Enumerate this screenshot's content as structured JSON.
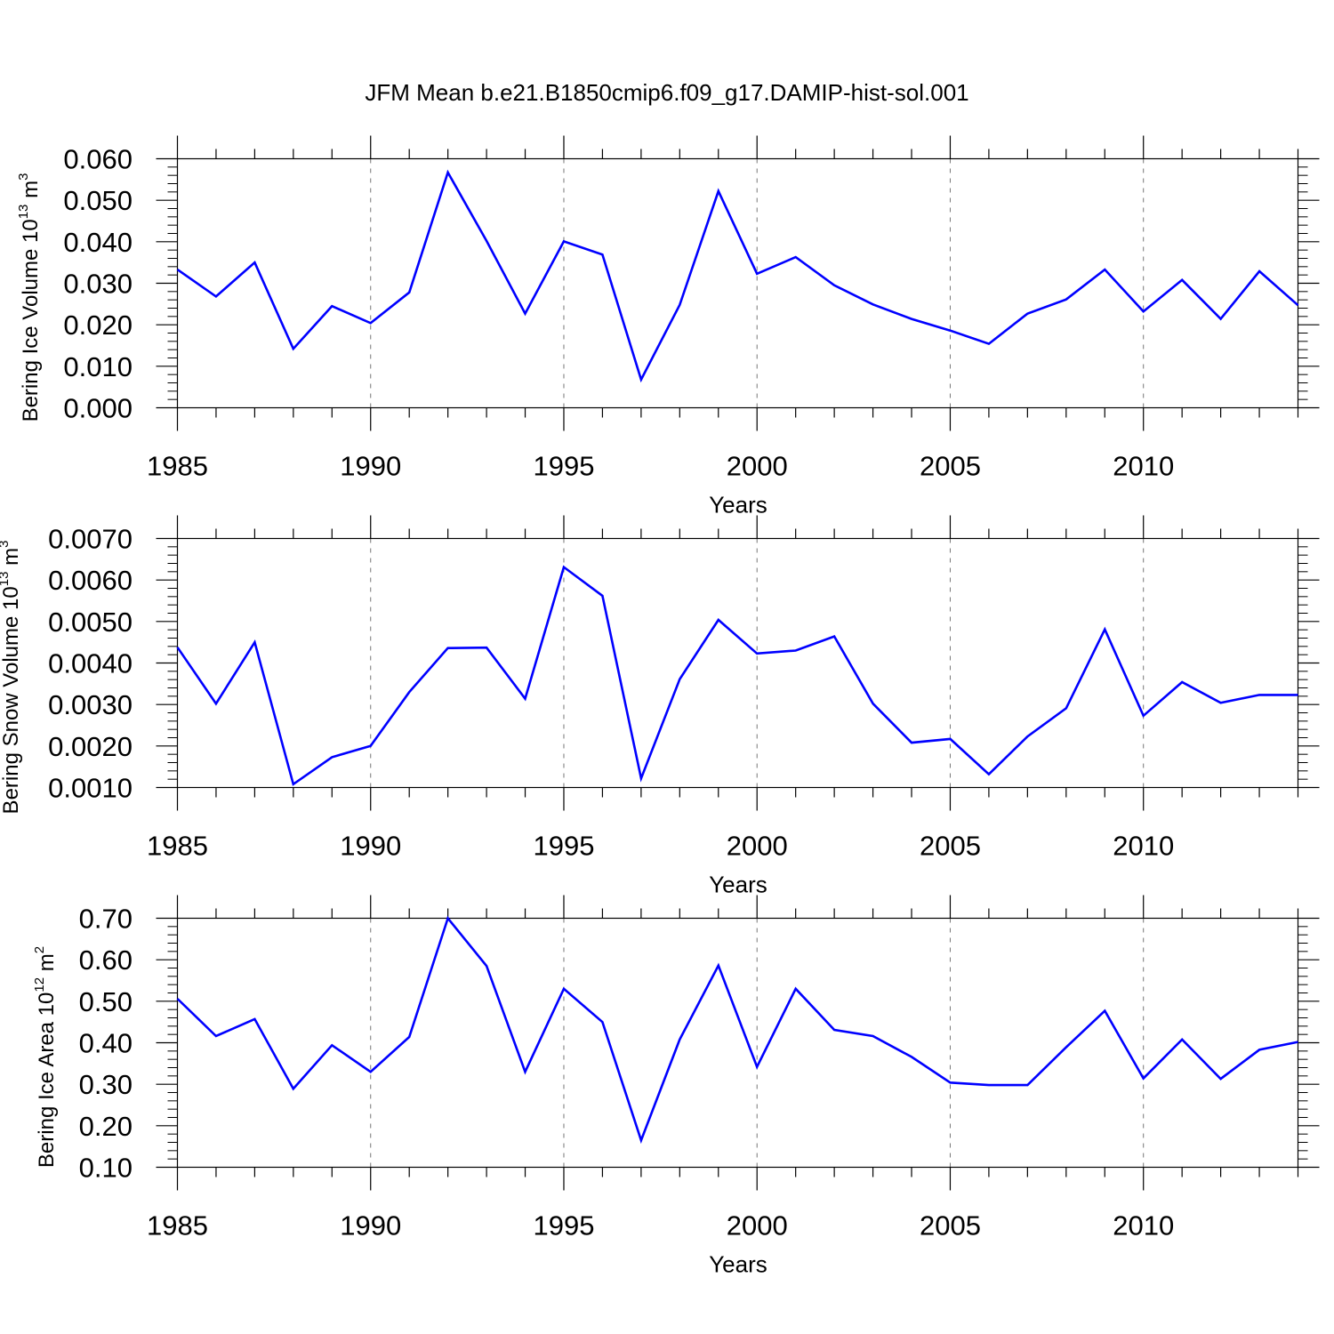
{
  "figure": {
    "title": "JFM Mean b.e21.B1850cmip6.f09_g17.DAMIP-hist-sol.001"
  },
  "colors": {
    "series": "#0000ff",
    "axis": "#000000",
    "grid": "#777777"
  },
  "chart_data": [
    {
      "type": "line",
      "xlabel": "Years",
      "ylabel": {
        "main": "Bering Ice Volume 10",
        "sup": "13",
        "unit": "m",
        "unit_sup": "3"
      },
      "xlim": [
        1985,
        2014
      ],
      "ylim": [
        0.0,
        0.06
      ],
      "x_ticks": [
        1985,
        1990,
        1995,
        2000,
        2005,
        2010
      ],
      "x_tick_labels": [
        "1985",
        "1990",
        "1995",
        "2000",
        "2005",
        "2010"
      ],
      "y_ticks": [
        0.0,
        0.01,
        0.02,
        0.03,
        0.04,
        0.05,
        0.06
      ],
      "y_tick_labels": [
        "0.000",
        "0.010",
        "0.020",
        "0.030",
        "0.040",
        "0.050",
        "0.060"
      ],
      "y_minor_step": 0.002,
      "x_grid": "dashed, at major ticks",
      "x": [
        1985,
        1986,
        1987,
        1988,
        1989,
        1990,
        1991,
        1992,
        1993,
        1994,
        1995,
        1996,
        1997,
        1998,
        1999,
        2000,
        2001,
        2002,
        2003,
        2004,
        2005,
        2006,
        2007,
        2008,
        2009,
        2010,
        2011,
        2012,
        2013,
        2014
      ],
      "values": [
        0.0333,
        0.0268,
        0.035,
        0.0142,
        0.0245,
        0.0204,
        0.0278,
        0.0567,
        0.0402,
        0.0227,
        0.0401,
        0.0369,
        0.0068,
        0.0248,
        0.0522,
        0.0323,
        0.0363,
        0.0295,
        0.0249,
        0.0214,
        0.0186,
        0.0154,
        0.0227,
        0.0261,
        0.0333,
        0.0232,
        0.0308,
        0.0214,
        0.0329,
        0.0247
      ]
    },
    {
      "type": "line",
      "xlabel": "Years",
      "ylabel": {
        "main": "Bering Snow Volume 10",
        "sup": "13",
        "unit": "m",
        "unit_sup": "3"
      },
      "xlim": [
        1985,
        2014
      ],
      "ylim": [
        0.001,
        0.007
      ],
      "x_ticks": [
        1985,
        1990,
        1995,
        2000,
        2005,
        2010
      ],
      "x_tick_labels": [
        "1985",
        "1990",
        "1995",
        "2000",
        "2005",
        "2010"
      ],
      "y_ticks": [
        0.001,
        0.002,
        0.003,
        0.004,
        0.005,
        0.006,
        0.007
      ],
      "y_tick_labels": [
        "0.0010",
        "0.0020",
        "0.0030",
        "0.0040",
        "0.0050",
        "0.0060",
        "0.0070"
      ],
      "y_minor_step": 0.0002,
      "x_grid": "dashed, at major ticks",
      "x": [
        1985,
        1986,
        1987,
        1988,
        1989,
        1990,
        1991,
        1992,
        1993,
        1994,
        1995,
        1996,
        1997,
        1998,
        1999,
        2000,
        2001,
        2002,
        2003,
        2004,
        2005,
        2006,
        2007,
        2008,
        2009,
        2010,
        2011,
        2012,
        2013,
        2014
      ],
      "values": [
        0.00438,
        0.00302,
        0.0045,
        0.00108,
        0.00173,
        0.002,
        0.0033,
        0.00436,
        0.00437,
        0.00314,
        0.00631,
        0.00562,
        0.00122,
        0.00361,
        0.00504,
        0.00423,
        0.0043,
        0.00464,
        0.00302,
        0.00208,
        0.00217,
        0.00132,
        0.00223,
        0.00291,
        0.00481,
        0.00273,
        0.00354,
        0.00304,
        0.00323,
        0.00323
      ]
    },
    {
      "type": "line",
      "xlabel": "Years",
      "ylabel": {
        "main": "Bering Ice Area 10",
        "sup": "12",
        "unit": "m",
        "unit_sup": "2"
      },
      "xlim": [
        1985,
        2014
      ],
      "ylim": [
        0.1,
        0.7
      ],
      "x_ticks": [
        1985,
        1990,
        1995,
        2000,
        2005,
        2010
      ],
      "x_tick_labels": [
        "1985",
        "1990",
        "1995",
        "2000",
        "2005",
        "2010"
      ],
      "y_ticks": [
        0.1,
        0.2,
        0.3,
        0.4,
        0.5,
        0.6,
        0.7
      ],
      "y_tick_labels": [
        "0.10",
        "0.20",
        "0.30",
        "0.40",
        "0.50",
        "0.60",
        "0.70"
      ],
      "y_minor_step": 0.02,
      "x_grid": "dashed, at major ticks",
      "x": [
        1985,
        1986,
        1987,
        1988,
        1989,
        1990,
        1991,
        1992,
        1993,
        1994,
        1995,
        1996,
        1997,
        1998,
        1999,
        2000,
        2001,
        2002,
        2003,
        2004,
        2005,
        2006,
        2007,
        2008,
        2009,
        2010,
        2011,
        2012,
        2013,
        2014
      ],
      "values": [
        0.506,
        0.416,
        0.457,
        0.289,
        0.394,
        0.33,
        0.414,
        0.7,
        0.585,
        0.33,
        0.53,
        0.45,
        0.165,
        0.408,
        0.586,
        0.342,
        0.53,
        0.431,
        0.416,
        0.366,
        0.304,
        0.298,
        0.298,
        0.389,
        0.477,
        0.314,
        0.408,
        0.313,
        0.383,
        0.402
      ]
    }
  ]
}
